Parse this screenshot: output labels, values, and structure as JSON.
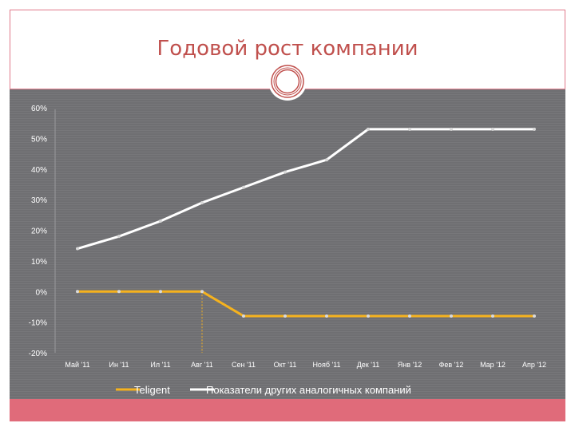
{
  "slide": {
    "title": "Годовой рост компании"
  },
  "colors": {
    "accent": "#c0504d",
    "frame": "#e07a8a",
    "chart_bg": "#6f6f72",
    "series_teligent": "#f5b21e",
    "series_others": "#ffffff",
    "bottom_band": "#e06b7a"
  },
  "chart_data": {
    "type": "line",
    "title": "",
    "xlabel": "",
    "ylabel": "",
    "ylim": [
      -20,
      60
    ],
    "yticks": [
      "60%",
      "50%",
      "40%",
      "30%",
      "20%",
      "10%",
      "0%",
      "-10%",
      "-20%"
    ],
    "yticks_values": [
      60,
      50,
      40,
      30,
      20,
      10,
      0,
      -10,
      -20
    ],
    "categories": [
      "Май '11",
      "Ин '11",
      "Ил '11",
      "Авг '11",
      "Сен '11",
      "Окт '11",
      "Нояб '11",
      "Дек '11",
      "Янв '12",
      "Фев '12",
      "Мар '12",
      "Апр '12"
    ],
    "series": [
      {
        "name": "Teligent",
        "color": "#f5b21e",
        "values": [
          0,
          0,
          0,
          0,
          -8,
          -8,
          -8,
          -8,
          -8,
          -8,
          -8,
          -8
        ]
      },
      {
        "name": "Показатели других аналогичных компаний",
        "color": "#ffffff",
        "values": [
          14,
          18,
          23,
          29,
          34,
          39,
          43,
          53,
          53,
          53,
          53,
          53
        ]
      }
    ],
    "vertical_marker_category": "Авг '11",
    "grid": false,
    "legend_position": "bottom"
  }
}
